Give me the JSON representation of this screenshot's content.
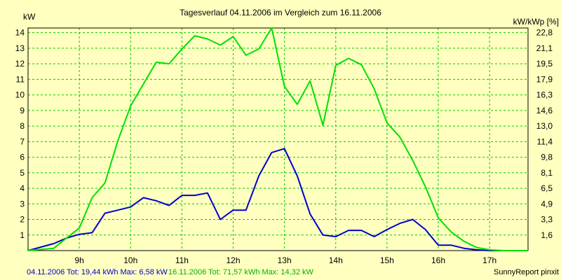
{
  "chart_data": {
    "type": "line",
    "title": "Tagesverlauf 04.11.2006 im Vergleich zum 16.11.2006",
    "ylabel_left": "kW",
    "ylabel_right": "kW/kWp [%]",
    "x_ticks": [
      "9h",
      "10h",
      "11h",
      "12h",
      "13h",
      "14h",
      "15h",
      "16h",
      "17h"
    ],
    "x_tick_values": [
      9,
      10,
      11,
      12,
      13,
      14,
      15,
      16,
      17
    ],
    "xlim": [
      8.0,
      17.75
    ],
    "y_ticks": [
      "1",
      "2",
      "3",
      "4",
      "5",
      "6",
      "7",
      "8",
      "9",
      "10",
      "11",
      "12",
      "13",
      "14"
    ],
    "y_tick_values": [
      1,
      2,
      3,
      4,
      5,
      6,
      7,
      8,
      9,
      10,
      11,
      12,
      13,
      14
    ],
    "ylim": [
      0,
      14.3
    ],
    "right_ticks": [
      "1,6",
      "3,3",
      "4,9",
      "6,5",
      "8,1",
      "9,8",
      "11,4",
      "13,0",
      "14,6",
      "16,3",
      "17,9",
      "19,5",
      "21,1",
      "22,8"
    ],
    "grid": true,
    "series": [
      {
        "color": "#0000cc",
        "x": [
          8.0,
          8.5,
          8.75,
          9.0,
          9.25,
          9.5,
          9.75,
          10.0,
          10.25,
          10.5,
          10.75,
          11.0,
          11.25,
          11.5,
          11.75,
          12.0,
          12.25,
          12.5,
          12.75,
          13.0,
          13.25,
          13.5,
          13.75,
          14.0,
          14.25,
          14.5,
          14.75,
          15.0,
          15.25,
          15.5,
          15.75,
          16.0,
          16.25,
          16.5,
          16.75,
          17.0,
          17.25,
          17.5,
          17.75
        ],
        "values": [
          0.0,
          0.45,
          0.8,
          1.05,
          1.15,
          2.4,
          2.6,
          2.8,
          3.4,
          3.2,
          2.9,
          3.55,
          3.55,
          3.7,
          2.0,
          2.6,
          2.6,
          4.8,
          6.3,
          6.55,
          4.8,
          2.35,
          1.0,
          0.9,
          1.3,
          1.3,
          0.9,
          1.35,
          1.75,
          2.0,
          1.35,
          0.35,
          0.35,
          0.15,
          0.05,
          0.0,
          0.0,
          0.0,
          0.0
        ]
      },
      {
        "color": "#00e000",
        "x": [
          8.0,
          8.5,
          8.75,
          9.0,
          9.25,
          9.5,
          9.75,
          10.0,
          10.25,
          10.5,
          10.75,
          11.0,
          11.25,
          11.5,
          11.75,
          12.0,
          12.25,
          12.5,
          12.75,
          13.0,
          13.25,
          13.5,
          13.75,
          14.0,
          14.25,
          14.5,
          14.75,
          15.0,
          15.25,
          15.5,
          15.75,
          16.0,
          16.25,
          16.5,
          16.75,
          17.0,
          17.25,
          17.5,
          17.75
        ],
        "values": [
          0.0,
          0.15,
          0.8,
          1.45,
          3.4,
          4.35,
          7.05,
          9.3,
          10.7,
          12.1,
          12.0,
          12.95,
          13.8,
          13.6,
          13.2,
          13.75,
          12.55,
          12.95,
          14.3,
          10.55,
          9.4,
          10.9,
          8.05,
          11.9,
          12.35,
          11.95,
          10.4,
          8.2,
          7.3,
          5.8,
          4.1,
          2.1,
          1.2,
          0.6,
          0.2,
          0.05,
          0.0,
          0.0,
          0.0
        ]
      }
    ]
  },
  "footer": {
    "blue_label": "04.11.2006 Tot: 19,44 kWh Max: 6,58 kW",
    "green_label": "16.11.2006 Tot: 71,57 kWh Max: 14,32 kW",
    "brand": "SunnyReport pinxit"
  }
}
